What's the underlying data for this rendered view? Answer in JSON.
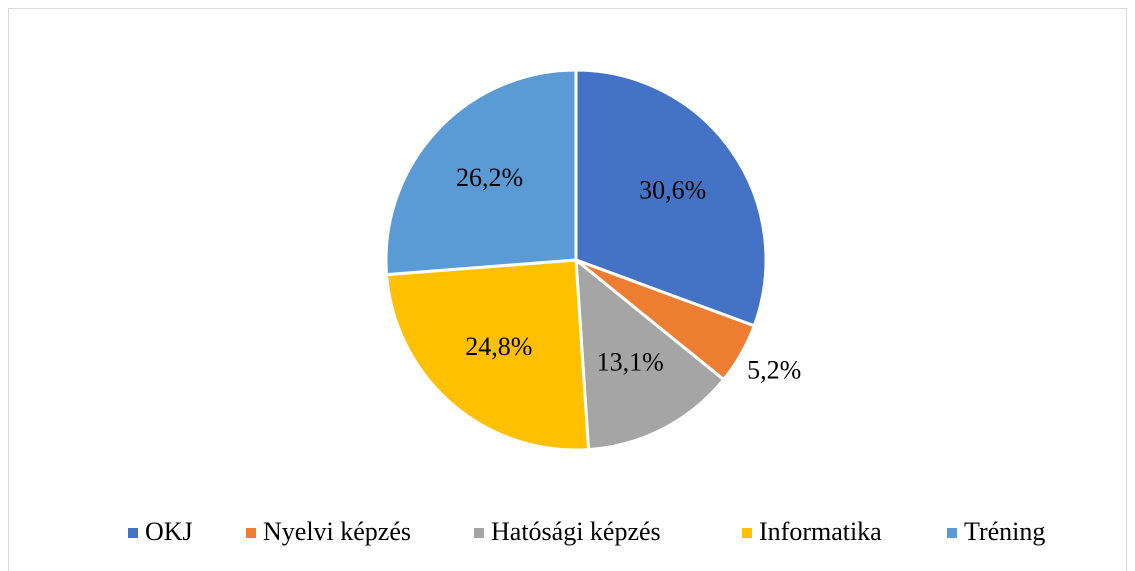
{
  "chart_data": {
    "type": "pie",
    "categories": [
      "OKJ",
      "Nyelvi képzés",
      "Hatósági képzés",
      "Informatika",
      "Tréning"
    ],
    "values": [
      30.6,
      5.2,
      13.1,
      24.8,
      26.2
    ],
    "value_labels": [
      "30,6%",
      "5,2%",
      "13,1%",
      "24,8%",
      "26,2%"
    ],
    "colors": [
      "#4472c4",
      "#ed7d31",
      "#a5a5a5",
      "#ffc000",
      "#5b9bd5"
    ],
    "legend": "bottom"
  }
}
